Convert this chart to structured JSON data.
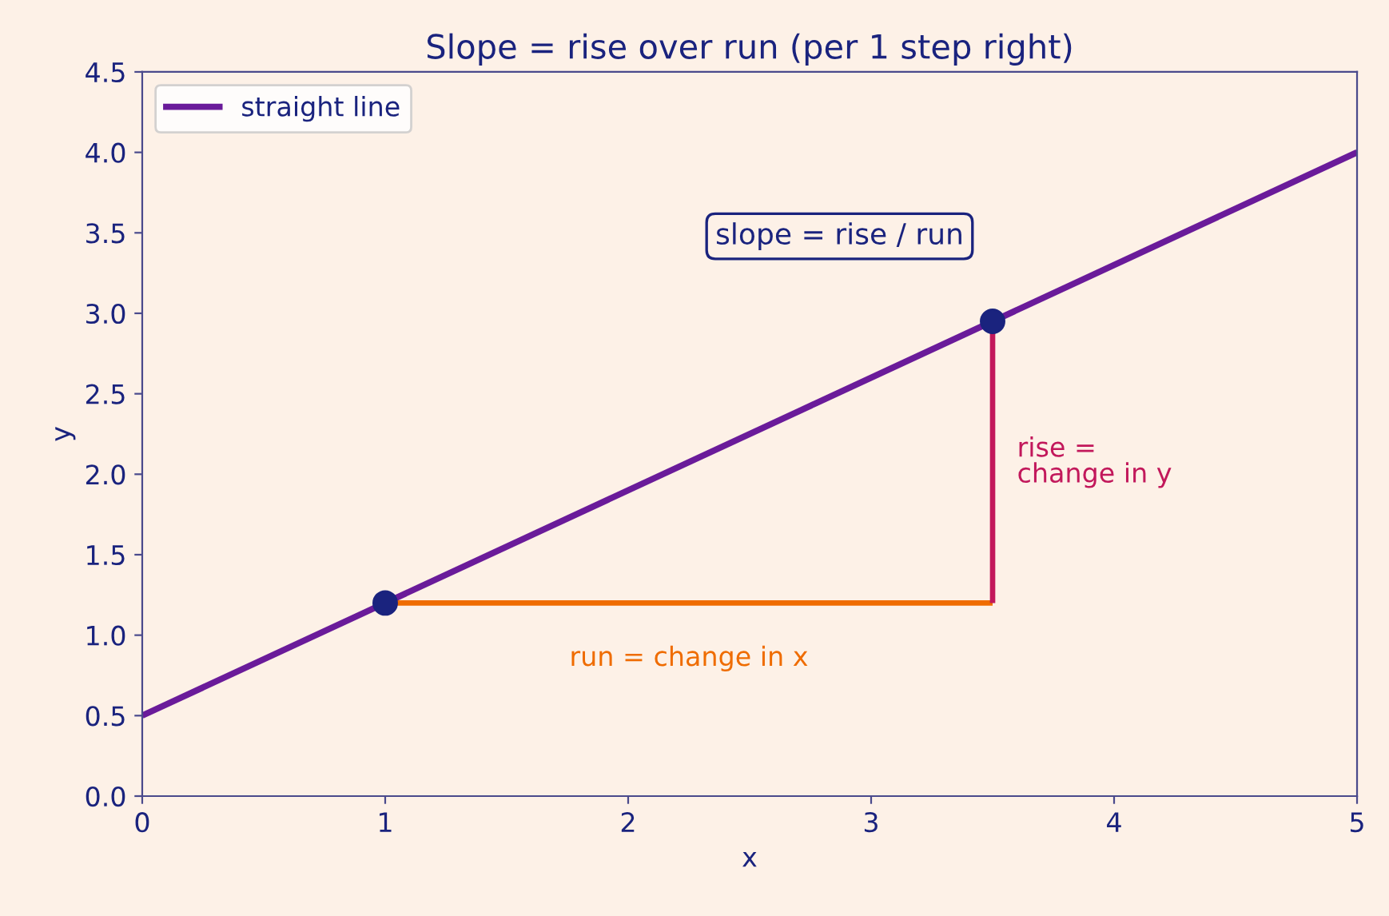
{
  "chart_data": {
    "type": "line",
    "title": "Slope = rise over run (per 1 step right)",
    "xlabel": "x",
    "ylabel": "y",
    "xlim": [
      0,
      5
    ],
    "xticks": [
      0,
      1,
      2,
      3,
      4,
      5
    ],
    "ylim": [
      0,
      4.5
    ],
    "yticks": [
      {
        "value": 0,
        "label": "0.0"
      },
      0.5,
      {
        "value": 1,
        "label": "1.0"
      },
      1.5,
      {
        "value": 2,
        "label": "2.0"
      },
      2.5,
      {
        "value": 3,
        "label": "3.0"
      },
      3.5,
      {
        "value": 4,
        "label": "4.0"
      },
      4.5
    ],
    "series": [
      {
        "name": "straight line",
        "color": "#6a1b9a",
        "x": [
          0,
          5
        ],
        "values": [
          0.5,
          4.0
        ]
      },
      {
        "type": "line",
        "name": "run = change in x",
        "color": "#ef6c00",
        "x": [
          1,
          3.5
        ],
        "values": [
          1.2,
          1.2
        ]
      },
      {
        "type": "line",
        "name": "rise =\nchange in y",
        "color": "#c2185b",
        "x": [
          3.5,
          3.5
        ],
        "values": [
          1.2,
          2.95
        ]
      },
      {
        "type": "scatter",
        "color": "#1a237e",
        "x": [
          1,
          3.5
        ],
        "values": [
          1.2,
          2.95
        ],
        "marker": "circle"
      }
    ],
    "annotations": [
      "slope = rise / run"
    ],
    "legend": "top left"
  }
}
